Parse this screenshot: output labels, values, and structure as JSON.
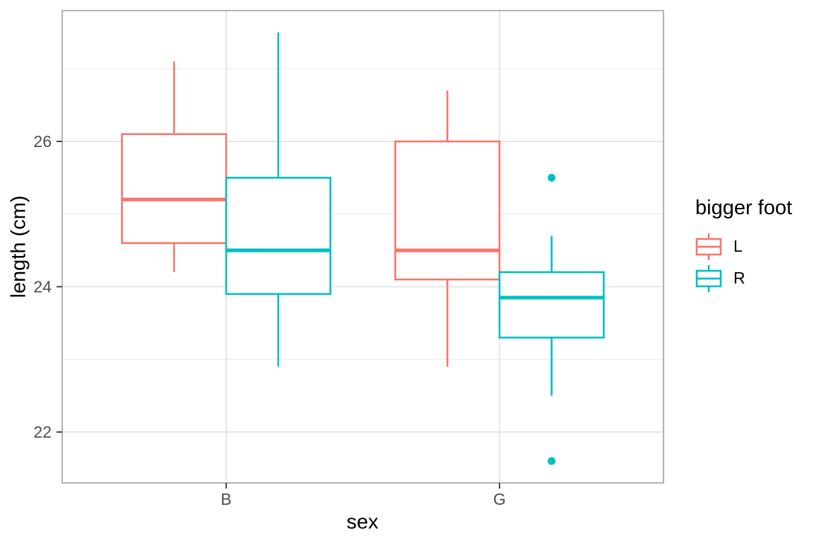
{
  "figure": {
    "background": "#ffffff"
  },
  "chart_data": {
    "type": "boxplot",
    "title": "",
    "xlabel": "sex",
    "ylabel": "length (cm)",
    "categories": [
      "B",
      "G"
    ],
    "yticks": [
      22,
      24,
      26
    ],
    "minor_yticks": [
      23,
      25,
      27
    ],
    "ylim": [
      21.3,
      27.8
    ],
    "grid": true,
    "legend": {
      "title": "bigger foot",
      "position": "right",
      "entries": [
        {
          "label": "L",
          "color": "#F8766D"
        },
        {
          "label": "R",
          "color": "#00BFC4"
        }
      ]
    },
    "series": [
      {
        "name": "L",
        "color": "#F8766D",
        "boxes": [
          {
            "category": "B",
            "whisker_low": 24.2,
            "q1": 24.6,
            "median": 25.2,
            "q3": 26.1,
            "whisker_high": 27.1,
            "outliers": []
          },
          {
            "category": "G",
            "whisker_low": 22.9,
            "q1": 24.1,
            "median": 24.5,
            "q3": 26.0,
            "whisker_high": 26.7,
            "outliers": []
          }
        ]
      },
      {
        "name": "R",
        "color": "#00BFC4",
        "boxes": [
          {
            "category": "B",
            "whisker_low": 22.9,
            "q1": 23.9,
            "median": 24.5,
            "q3": 25.5,
            "whisker_high": 27.5,
            "outliers": []
          },
          {
            "category": "G",
            "whisker_low": 22.5,
            "q1": 23.3,
            "median": 23.85,
            "q3": 24.2,
            "whisker_high": 24.7,
            "outliers": [
              25.5,
              21.6
            ]
          }
        ]
      }
    ]
  },
  "colors": {
    "panel_background": "#ffffff",
    "panel_border": "#ababab",
    "grid_major": "#e0e0e0",
    "grid_minor": "#ebebeb",
    "tick_mark": "#333333",
    "tick_label": "#4d4d4d",
    "text": "#000000"
  }
}
